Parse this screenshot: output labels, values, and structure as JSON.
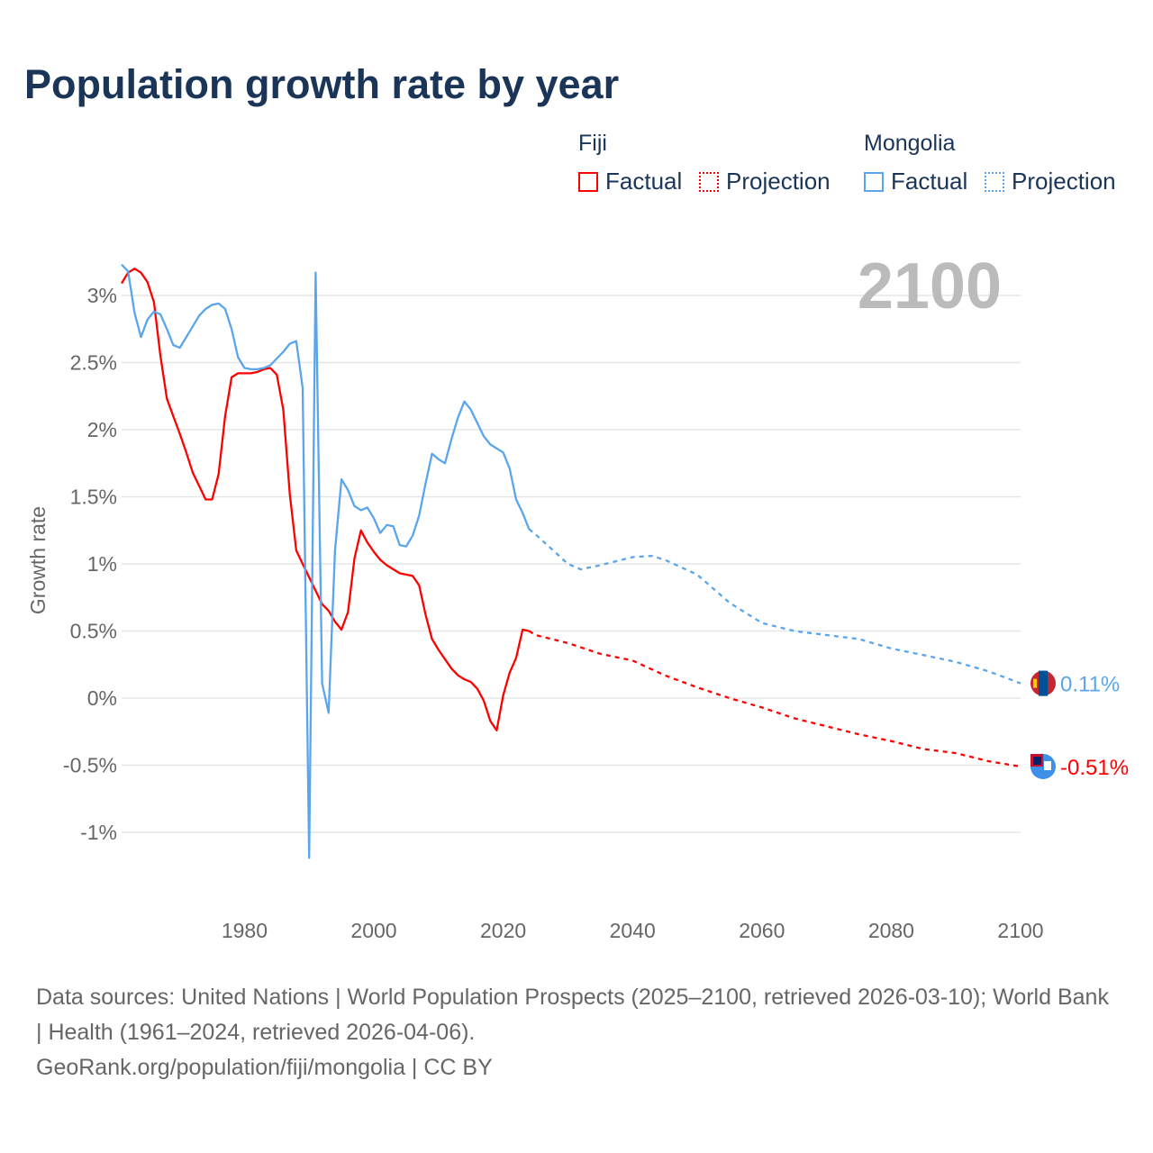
{
  "title": "Population growth rate by year",
  "legend": {
    "groups": [
      {
        "name": "Fiji",
        "color": "#ff0000",
        "factual": "Factual",
        "projection": "Projection"
      },
      {
        "name": "Mongolia",
        "color": "#5aa5ec",
        "factual": "Factual",
        "projection": "Projection"
      }
    ]
  },
  "footnote": {
    "sources": "Data sources: United Nations | World Population Prospects (2025–2100, retrieved 2026-03-10); World Bank | Health (1961–2024, retrieved 2026-04-06).",
    "link": "GeoRank.org/population/fiji/mongolia | CC BY"
  },
  "chart_data": {
    "type": "line",
    "title": "Population growth rate by year",
    "ylabel": "Growth rate",
    "xlabel": "",
    "current_year_label": "2100",
    "xlim": [
      1961,
      2100
    ],
    "ylim": [
      -1.35,
      3.3
    ],
    "x_ticks": [
      1980,
      2000,
      2020,
      2040,
      2060,
      2080,
      2100
    ],
    "y_ticks": [
      3,
      2.5,
      2,
      1.5,
      1,
      0.5,
      0,
      -0.5,
      -1
    ],
    "y_tick_labels": [
      "3%",
      "2.5%",
      "2%",
      "1.5%",
      "1%",
      "0.5%",
      "0%",
      "-0.5%",
      "-1%"
    ],
    "grid": true,
    "series": [
      {
        "name": "Fiji",
        "color": "#ff0000",
        "end_label": "-0.51%",
        "factual": {
          "x": [
            1961,
            1962,
            1963,
            1964,
            1965,
            1966,
            1967,
            1968,
            1969,
            1970,
            1971,
            1972,
            1973,
            1974,
            1975,
            1976,
            1977,
            1978,
            1979,
            1980,
            1981,
            1982,
            1983,
            1984,
            1985,
            1986,
            1987,
            1988,
            1989,
            1990,
            1991,
            1992,
            1993,
            1994,
            1995,
            1996,
            1997,
            1998,
            1999,
            2000,
            2001,
            2002,
            2003,
            2004,
            2005,
            2006,
            2007,
            2008,
            2009,
            2010,
            2011,
            2012,
            2013,
            2014,
            2015,
            2016,
            2017,
            2018,
            2019,
            2020,
            2021,
            2022,
            2023,
            2024
          ],
          "y": [
            3.09,
            3.17,
            3.2,
            3.17,
            3.1,
            2.95,
            2.55,
            2.23,
            2.1,
            1.97,
            1.83,
            1.68,
            1.58,
            1.48,
            1.48,
            1.67,
            2.1,
            2.39,
            2.42,
            2.42,
            2.42,
            2.43,
            2.45,
            2.46,
            2.41,
            2.15,
            1.52,
            1.1,
            1.0,
            0.9,
            0.8,
            0.7,
            0.65,
            0.57,
            0.51,
            0.64,
            1.04,
            1.25,
            1.16,
            1.09,
            1.03,
            0.99,
            0.96,
            0.93,
            0.92,
            0.91,
            0.84,
            0.62,
            0.44,
            0.36,
            0.29,
            0.22,
            0.17,
            0.14,
            0.12,
            0.07,
            -0.02,
            -0.17,
            -0.24,
            0.02,
            0.19,
            0.3,
            0.51,
            0.5
          ]
        },
        "projection": {
          "x": [
            2024,
            2025,
            2030,
            2035,
            2040,
            2045,
            2050,
            2055,
            2060,
            2065,
            2070,
            2075,
            2080,
            2085,
            2090,
            2095,
            2100
          ],
          "y": [
            0.5,
            0.47,
            0.41,
            0.33,
            0.28,
            0.17,
            0.08,
            0.0,
            -0.07,
            -0.15,
            -0.21,
            -0.27,
            -0.32,
            -0.38,
            -0.41,
            -0.47,
            -0.51
          ]
        }
      },
      {
        "name": "Mongolia",
        "color": "#5aa5ec",
        "end_label": "0.11%",
        "factual": {
          "x": [
            1961,
            1962,
            1963,
            1964,
            1965,
            1966,
            1967,
            1968,
            1969,
            1970,
            1971,
            1972,
            1973,
            1974,
            1975,
            1976,
            1977,
            1978,
            1979,
            1980,
            1981,
            1982,
            1983,
            1984,
            1985,
            1986,
            1987,
            1988,
            1989,
            1990,
            1991,
            1992,
            1993,
            1994,
            1995,
            1996,
            1997,
            1998,
            1999,
            2000,
            2001,
            2002,
            2003,
            2004,
            2005,
            2006,
            2007,
            2008,
            2009,
            2010,
            2011,
            2012,
            2013,
            2014,
            2015,
            2016,
            2017,
            2018,
            2019,
            2020,
            2021,
            2022,
            2023,
            2024
          ],
          "y": [
            3.23,
            3.18,
            2.87,
            2.69,
            2.82,
            2.88,
            2.86,
            2.75,
            2.63,
            2.61,
            2.69,
            2.77,
            2.85,
            2.9,
            2.93,
            2.94,
            2.9,
            2.75,
            2.54,
            2.46,
            2.45,
            2.45,
            2.46,
            2.48,
            2.53,
            2.58,
            2.64,
            2.66,
            2.31,
            -1.19,
            3.17,
            0.11,
            -0.11,
            1.1,
            1.63,
            1.55,
            1.43,
            1.4,
            1.42,
            1.34,
            1.23,
            1.29,
            1.28,
            1.14,
            1.13,
            1.21,
            1.36,
            1.6,
            1.82,
            1.78,
            1.75,
            1.93,
            2.09,
            2.21,
            2.15,
            2.05,
            1.95,
            1.89,
            1.86,
            1.83,
            1.71,
            1.48,
            1.38,
            1.26
          ]
        },
        "projection": {
          "x": [
            2024,
            2025,
            2030,
            2032,
            2035,
            2040,
            2043,
            2045,
            2050,
            2055,
            2060,
            2065,
            2070,
            2075,
            2080,
            2085,
            2090,
            2095,
            2100
          ],
          "y": [
            1.26,
            1.22,
            1.0,
            0.96,
            0.99,
            1.05,
            1.06,
            1.03,
            0.92,
            0.71,
            0.56,
            0.5,
            0.47,
            0.44,
            0.37,
            0.32,
            0.27,
            0.2,
            0.11
          ]
        }
      }
    ]
  }
}
